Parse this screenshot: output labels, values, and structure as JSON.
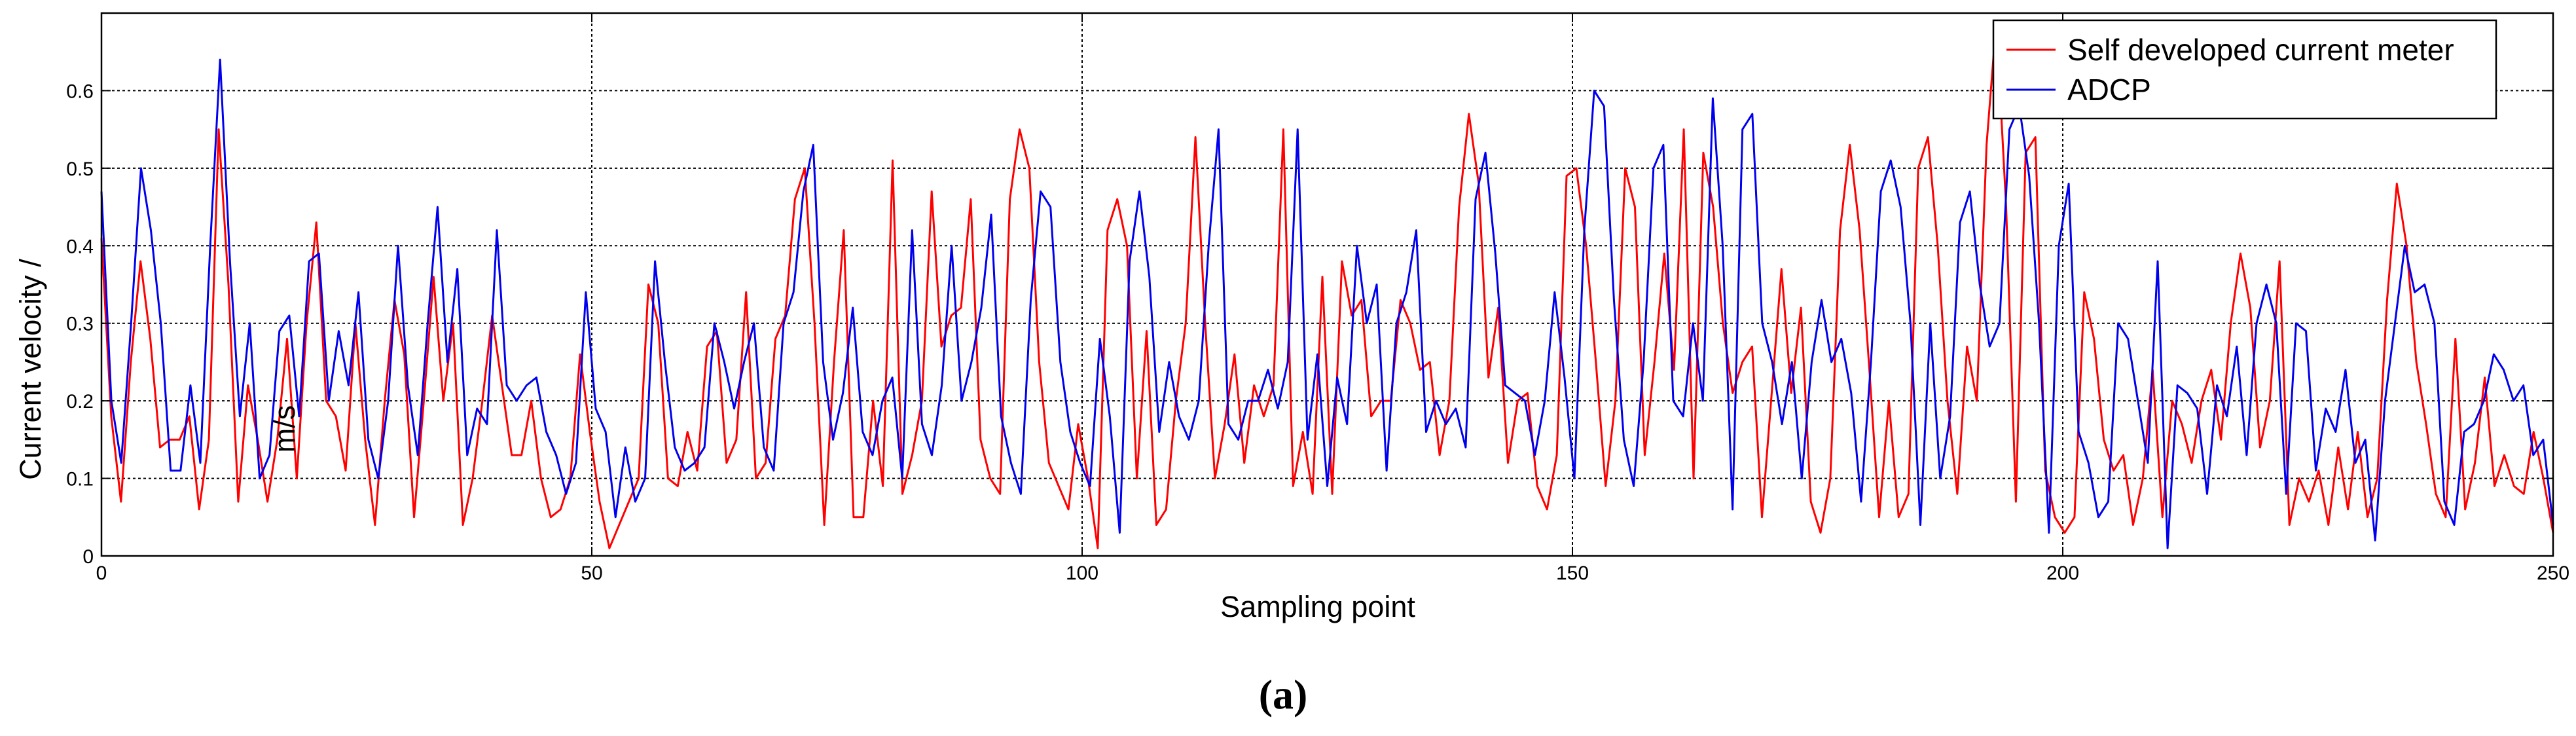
{
  "caption": "(a)",
  "chart_data": {
    "type": "line",
    "title": "",
    "xlabel": "Sampling point",
    "ylabel": "Current velocity / m/s",
    "ylabel_main": "Current velocity /",
    "ylabel_unit": "m/s",
    "xlim": [
      0,
      250
    ],
    "ylim": [
      0,
      0.7
    ],
    "xticks": [
      0,
      50,
      100,
      150,
      200,
      250
    ],
    "yticks": [
      0,
      0.1,
      0.2,
      0.3,
      0.4,
      0.5,
      0.6
    ],
    "xtick_labels": [
      "0",
      "50",
      "100",
      "150",
      "200",
      "250"
    ],
    "ytick_labels": [
      "0",
      "0.1",
      "0.2",
      "0.3",
      "0.4",
      "0.5",
      "0.6"
    ],
    "grid": true,
    "legend_position": "top-right",
    "colors": {
      "red": "#ff0000",
      "blue": "#0000ee"
    },
    "series": [
      {
        "name": "Self developed current meter",
        "color": "#ff0000",
        "values": [
          0.41,
          0.18,
          0.07,
          0.25,
          0.38,
          0.28,
          0.14,
          0.15,
          0.15,
          0.18,
          0.06,
          0.15,
          0.55,
          0.35,
          0.07,
          0.22,
          0.15,
          0.07,
          0.15,
          0.28,
          0.1,
          0.3,
          0.43,
          0.2,
          0.18,
          0.11,
          0.3,
          0.15,
          0.04,
          0.2,
          0.33,
          0.26,
          0.05,
          0.2,
          0.36,
          0.2,
          0.3,
          0.04,
          0.1,
          0.2,
          0.31,
          0.22,
          0.13,
          0.13,
          0.2,
          0.1,
          0.05,
          0.06,
          0.1,
          0.26,
          0.16,
          0.07,
          0.01,
          0.04,
          0.07,
          0.1,
          0.35,
          0.3,
          0.1,
          0.09,
          0.16,
          0.11,
          0.27,
          0.29,
          0.12,
          0.15,
          0.34,
          0.1,
          0.12,
          0.28,
          0.31,
          0.46,
          0.5,
          0.3,
          0.04,
          0.25,
          0.42,
          0.05,
          0.05,
          0.2,
          0.09,
          0.51,
          0.08,
          0.13,
          0.2,
          0.47,
          0.27,
          0.31,
          0.32,
          0.46,
          0.15,
          0.1,
          0.08,
          0.46,
          0.55,
          0.5,
          0.25,
          0.12,
          0.09,
          0.06,
          0.17,
          0.1,
          0.01,
          0.42,
          0.46,
          0.4,
          0.1,
          0.29,
          0.04,
          0.06,
          0.2,
          0.3,
          0.54,
          0.3,
          0.1,
          0.17,
          0.26,
          0.12,
          0.22,
          0.18,
          0.22,
          0.55,
          0.09,
          0.16,
          0.08,
          0.36,
          0.08,
          0.38,
          0.31,
          0.33,
          0.18,
          0.2,
          0.2,
          0.33,
          0.3,
          0.24,
          0.25,
          0.13,
          0.2,
          0.45,
          0.57,
          0.48,
          0.23,
          0.32,
          0.12,
          0.2,
          0.21,
          0.09,
          0.06,
          0.13,
          0.49,
          0.5,
          0.4,
          0.25,
          0.09,
          0.2,
          0.5,
          0.45,
          0.13,
          0.25,
          0.39,
          0.24,
          0.55,
          0.1,
          0.52,
          0.45,
          0.3,
          0.21,
          0.25,
          0.27,
          0.05,
          0.21,
          0.37,
          0.21,
          0.32,
          0.07,
          0.03,
          0.1,
          0.42,
          0.53,
          0.42,
          0.24,
          0.05,
          0.2,
          0.05,
          0.08,
          0.5,
          0.54,
          0.4,
          0.2,
          0.08,
          0.27,
          0.2,
          0.53,
          0.69,
          0.45,
          0.07,
          0.52,
          0.54,
          0.11,
          0.05,
          0.03,
          0.05,
          0.34,
          0.28,
          0.15,
          0.11,
          0.13,
          0.04,
          0.1,
          0.24,
          0.05,
          0.2,
          0.17,
          0.12,
          0.2,
          0.24,
          0.15,
          0.3,
          0.39,
          0.32,
          0.14,
          0.2,
          0.38,
          0.04,
          0.1,
          0.07,
          0.11,
          0.04,
          0.14,
          0.06,
          0.16,
          0.05,
          0.1,
          0.33,
          0.48,
          0.4,
          0.25,
          0.17,
          0.08,
          0.05,
          0.28,
          0.06,
          0.12,
          0.23,
          0.09,
          0.13,
          0.09,
          0.08,
          0.16,
          0.1,
          0.03
        ]
      },
      {
        "name": "ADCP",
        "color": "#0000ee",
        "values": [
          0.47,
          0.2,
          0.12,
          0.3,
          0.5,
          0.42,
          0.3,
          0.11,
          0.11,
          0.22,
          0.12,
          0.4,
          0.64,
          0.38,
          0.18,
          0.3,
          0.1,
          0.13,
          0.29,
          0.31,
          0.18,
          0.38,
          0.39,
          0.2,
          0.29,
          0.22,
          0.34,
          0.15,
          0.1,
          0.2,
          0.4,
          0.22,
          0.13,
          0.3,
          0.45,
          0.25,
          0.37,
          0.13,
          0.19,
          0.17,
          0.42,
          0.22,
          0.2,
          0.22,
          0.23,
          0.16,
          0.13,
          0.08,
          0.12,
          0.34,
          0.19,
          0.16,
          0.05,
          0.14,
          0.07,
          0.1,
          0.38,
          0.25,
          0.14,
          0.11,
          0.12,
          0.14,
          0.3,
          0.25,
          0.19,
          0.25,
          0.3,
          0.14,
          0.11,
          0.3,
          0.34,
          0.47,
          0.53,
          0.25,
          0.15,
          0.21,
          0.32,
          0.16,
          0.13,
          0.2,
          0.23,
          0.1,
          0.42,
          0.17,
          0.13,
          0.22,
          0.4,
          0.2,
          0.25,
          0.32,
          0.44,
          0.18,
          0.12,
          0.08,
          0.33,
          0.47,
          0.45,
          0.25,
          0.16,
          0.12,
          0.09,
          0.28,
          0.18,
          0.03,
          0.38,
          0.47,
          0.36,
          0.16,
          0.25,
          0.18,
          0.15,
          0.2,
          0.4,
          0.55,
          0.17,
          0.15,
          0.2,
          0.2,
          0.24,
          0.19,
          0.25,
          0.55,
          0.15,
          0.26,
          0.09,
          0.23,
          0.17,
          0.4,
          0.3,
          0.35,
          0.11,
          0.3,
          0.34,
          0.42,
          0.16,
          0.2,
          0.17,
          0.19,
          0.14,
          0.46,
          0.52,
          0.39,
          0.22,
          0.21,
          0.2,
          0.13,
          0.2,
          0.34,
          0.23,
          0.1,
          0.42,
          0.6,
          0.58,
          0.33,
          0.15,
          0.09,
          0.25,
          0.5,
          0.53,
          0.2,
          0.18,
          0.3,
          0.2,
          0.59,
          0.4,
          0.06,
          0.55,
          0.57,
          0.3,
          0.25,
          0.17,
          0.25,
          0.1,
          0.25,
          0.33,
          0.25,
          0.28,
          0.21,
          0.07,
          0.25,
          0.47,
          0.51,
          0.45,
          0.3,
          0.04,
          0.3,
          0.1,
          0.18,
          0.43,
          0.47,
          0.35,
          0.27,
          0.3,
          0.55,
          0.58,
          0.49,
          0.3,
          0.03,
          0.4,
          0.48,
          0.16,
          0.12,
          0.05,
          0.07,
          0.3,
          0.28,
          0.2,
          0.12,
          0.38,
          0.01,
          0.22,
          0.21,
          0.19,
          0.08,
          0.22,
          0.18,
          0.27,
          0.13,
          0.3,
          0.35,
          0.3,
          0.08,
          0.3,
          0.29,
          0.11,
          0.19,
          0.16,
          0.24,
          0.12,
          0.15,
          0.02,
          0.2,
          0.3,
          0.4,
          0.34,
          0.35,
          0.3,
          0.07,
          0.04,
          0.16,
          0.17,
          0.2,
          0.26,
          0.24,
          0.2,
          0.22,
          0.13,
          0.15,
          0.04
        ]
      }
    ]
  }
}
